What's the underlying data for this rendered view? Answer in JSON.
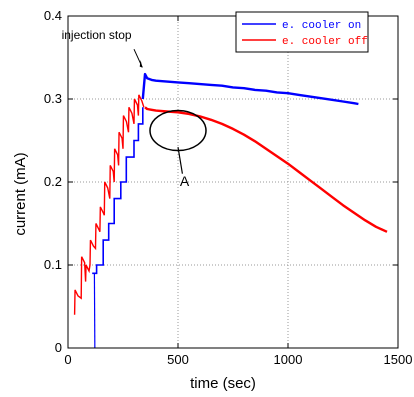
{
  "chart_data": {
    "type": "line",
    "xlabel": "time (sec)",
    "ylabel": "current (mA)",
    "xlim": [
      0,
      1500
    ],
    "ylim": [
      0,
      0.4
    ],
    "x_ticks": [
      0,
      500,
      1000,
      1500
    ],
    "y_ticks": [
      0,
      0.1,
      0.2,
      0.3,
      0.4
    ],
    "x_tick_labels": [
      "0",
      "500",
      "1000",
      "1500"
    ],
    "y_tick_labels": [
      "0",
      "0.1",
      "0.2",
      "0.3",
      "0.4"
    ],
    "grid": true,
    "legend_position": "top-right",
    "series": [
      {
        "name": "e. cooler on",
        "color": "#0000ff",
        "x": [
          340,
          350,
          360,
          380,
          400,
          450,
          500,
          550,
          600,
          650,
          700,
          750,
          800,
          850,
          900,
          950,
          1000,
          1050,
          1100,
          1150,
          1200,
          1250,
          1300,
          1320
        ],
        "y": [
          0.3,
          0.33,
          0.325,
          0.323,
          0.322,
          0.321,
          0.32,
          0.319,
          0.318,
          0.317,
          0.316,
          0.314,
          0.313,
          0.311,
          0.31,
          0.308,
          0.307,
          0.305,
          0.303,
          0.301,
          0.299,
          0.297,
          0.295,
          0.294
        ]
      },
      {
        "name": "e. cooler off",
        "color": "#ff0000",
        "x": [
          350,
          360,
          380,
          400,
          450,
          500,
          550,
          600,
          650,
          700,
          750,
          800,
          850,
          900,
          950,
          1000,
          1050,
          1100,
          1150,
          1200,
          1250,
          1300,
          1350,
          1400,
          1450
        ],
        "y": [
          0.29,
          0.288,
          0.287,
          0.286,
          0.285,
          0.284,
          0.282,
          0.279,
          0.275,
          0.27,
          0.264,
          0.257,
          0.249,
          0.24,
          0.231,
          0.222,
          0.212,
          0.202,
          0.192,
          0.182,
          0.172,
          0.163,
          0.154,
          0.146,
          0.14
        ]
      }
    ],
    "injection": {
      "red_base": [
        [
          30,
          0.04
        ],
        [
          60,
          0.06
        ],
        [
          80,
          0.08
        ],
        [
          100,
          0.1
        ],
        [
          125,
          0.12
        ],
        [
          145,
          0.14
        ],
        [
          165,
          0.16
        ],
        [
          190,
          0.18
        ],
        [
          210,
          0.2
        ],
        [
          230,
          0.22
        ],
        [
          250,
          0.24
        ],
        [
          275,
          0.26
        ],
        [
          300,
          0.27
        ],
        [
          320,
          0.28
        ],
        [
          345,
          0.29
        ]
      ],
      "red_peak": [
        [
          32,
          0.07
        ],
        [
          62,
          0.11
        ],
        [
          82,
          0.1
        ],
        [
          102,
          0.13
        ],
        [
          127,
          0.15
        ],
        [
          147,
          0.17
        ],
        [
          167,
          0.2
        ],
        [
          192,
          0.22
        ],
        [
          212,
          0.24
        ],
        [
          232,
          0.26
        ],
        [
          252,
          0.28
        ],
        [
          277,
          0.29
        ],
        [
          302,
          0.3
        ],
        [
          322,
          0.305
        ]
      ],
      "blue_steps": [
        [
          110,
          0.09
        ],
        [
          130,
          0.1
        ],
        [
          160,
          0.13
        ],
        [
          185,
          0.15
        ],
        [
          210,
          0.18
        ],
        [
          240,
          0.2
        ],
        [
          265,
          0.23
        ],
        [
          300,
          0.25
        ],
        [
          320,
          0.27
        ],
        [
          340,
          0.29
        ]
      ],
      "blue_dip": [
        [
          120,
          0.09
        ],
        [
          122,
          0.0
        ]
      ]
    },
    "annotations": [
      {
        "text": "injection stop",
        "x": 130,
        "y": 0.372
      },
      {
        "text": "A",
        "x": 530,
        "y": 0.195
      }
    ]
  }
}
